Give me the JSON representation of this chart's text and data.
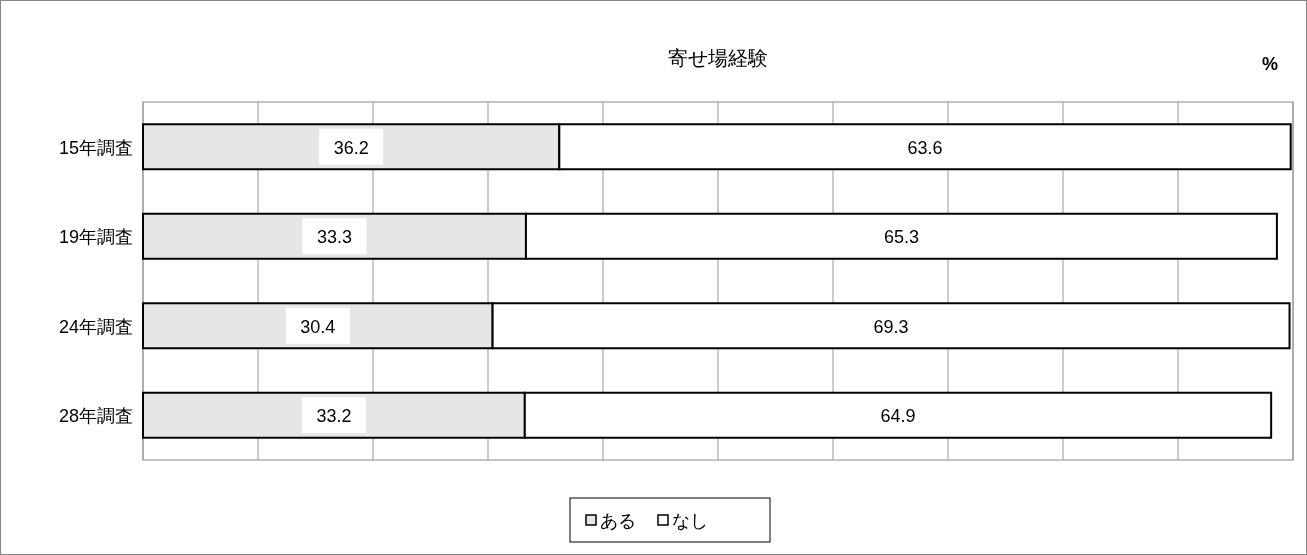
{
  "chart_data": {
    "type": "bar",
    "orientation": "horizontal",
    "stacked": true,
    "title": "寄せ場経験",
    "annotations": [
      "%"
    ],
    "categories": [
      "15年調査",
      "19年調査",
      "24年調査",
      "28年調査"
    ],
    "series": [
      {
        "name": "ある",
        "color": "#e6e6e6",
        "values": [
          36.2,
          33.3,
          30.4,
          33.2
        ]
      },
      {
        "name": "なし",
        "color": "#ffffff",
        "values": [
          63.6,
          65.3,
          69.3,
          64.9
        ]
      }
    ],
    "xlim": [
      0,
      100
    ],
    "xticks": [
      0,
      10,
      20,
      30,
      40,
      50,
      60,
      70,
      80,
      90,
      100
    ],
    "tick_labels": "y",
    "grid": "x",
    "legend": "bottom",
    "data_labels": true
  }
}
